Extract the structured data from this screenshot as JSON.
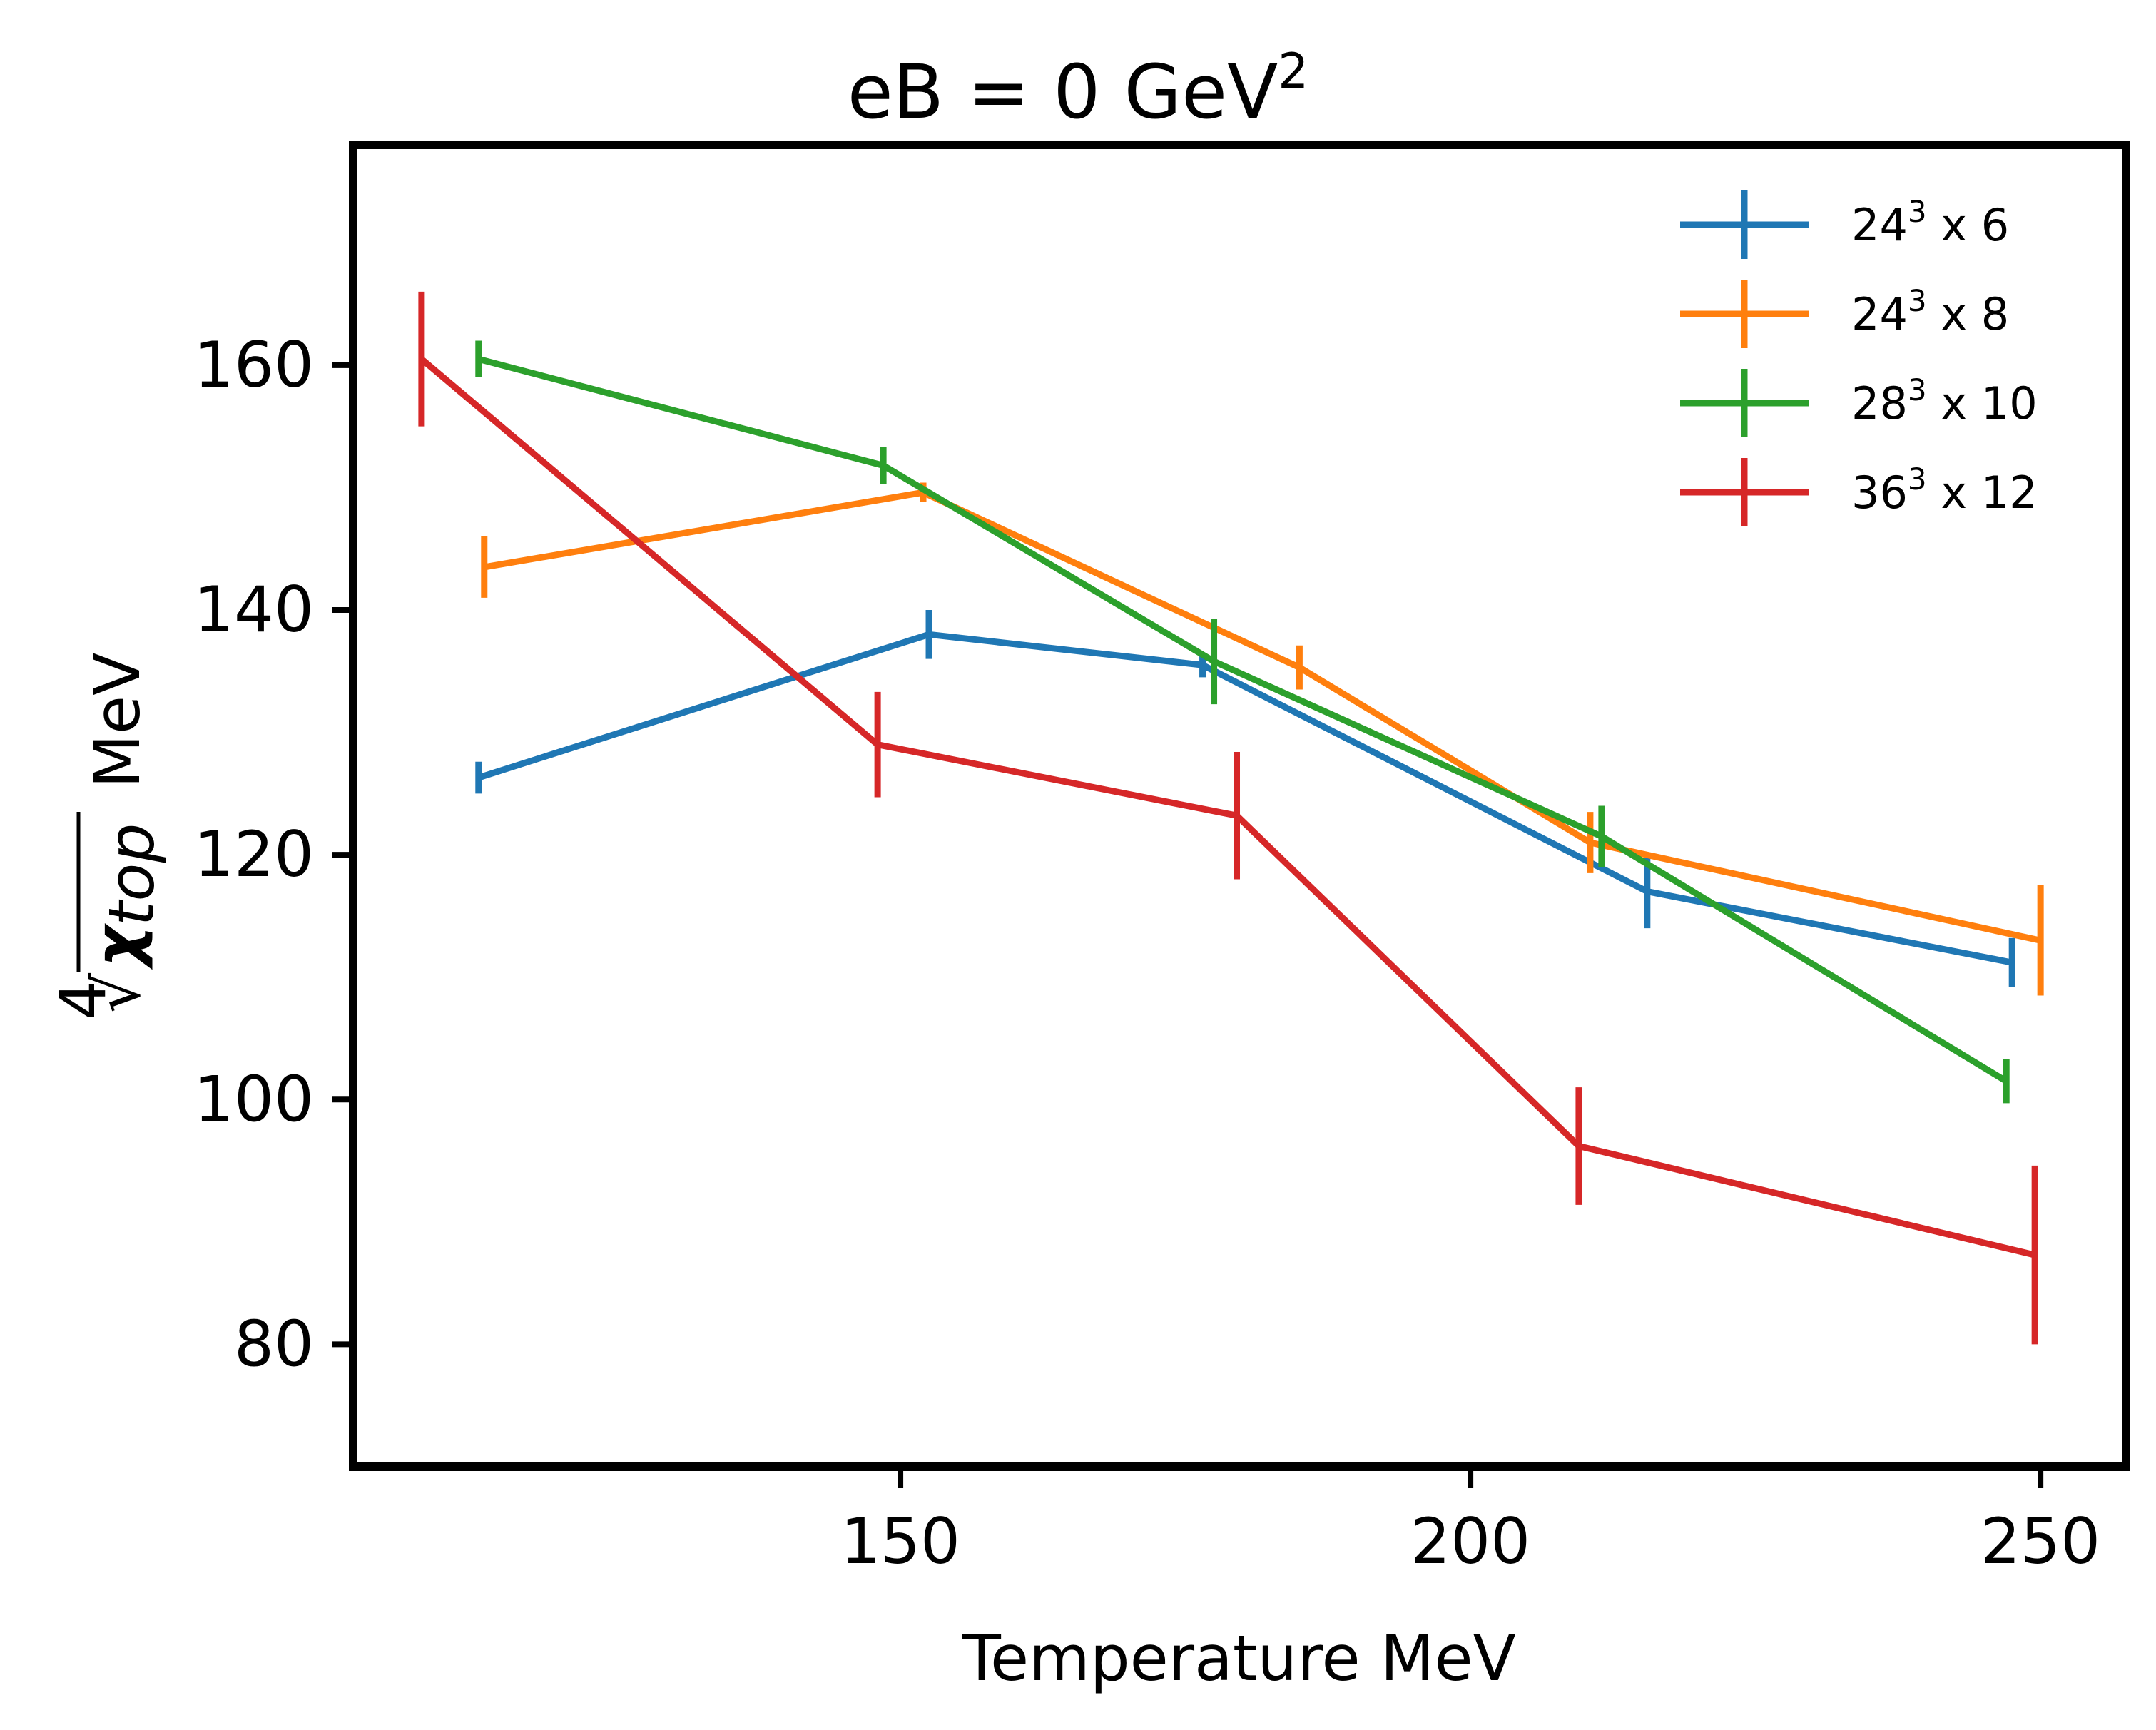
{
  "chart_data": {
    "type": "line",
    "title": "eB  = 0 GeV",
    "title_superscript": "2",
    "xlabel": "Temperature MeV",
    "ylabel": {
      "root_index": "4",
      "symbol": "χ",
      "subscript": "top",
      "unit": "MeV"
    },
    "xlim": [
      102,
      257.5
    ],
    "ylim": [
      70,
      178
    ],
    "xticks": [
      150,
      200,
      250
    ],
    "yticks": [
      80,
      100,
      120,
      140,
      160
    ],
    "grid": false,
    "legend_position": "top-right",
    "series": [
      {
        "name": "24",
        "name_sup": "3",
        "name_rest": " x 6",
        "color": "#1f77b4",
        "points": [
          {
            "x": 113,
            "y": 126.3,
            "err": 1.3
          },
          {
            "x": 152.5,
            "y": 138.0,
            "err": 2.0
          },
          {
            "x": 176.5,
            "y": 135.5,
            "err": 1.0
          },
          {
            "x": 215.5,
            "y": 117.0,
            "err": 3.0
          },
          {
            "x": 247.5,
            "y": 111.2,
            "err": 2.0
          }
        ]
      },
      {
        "name": "24",
        "name_sup": "3",
        "name_rest": " x 8",
        "color": "#ff7f0e",
        "points": [
          {
            "x": 113.5,
            "y": 143.5,
            "err": 2.5
          },
          {
            "x": 152.0,
            "y": 149.6,
            "err": 0.8
          },
          {
            "x": 185.0,
            "y": 135.3,
            "err": 1.8
          },
          {
            "x": 210.5,
            "y": 121.0,
            "err": 2.5
          },
          {
            "x": 250.0,
            "y": 113.0,
            "err": 4.5
          }
        ]
      },
      {
        "name": "28",
        "name_sup": "3",
        "name_rest": " x 10",
        "color": "#2ca02c",
        "points": [
          {
            "x": 113.0,
            "y": 160.5,
            "err": 1.5
          },
          {
            "x": 148.5,
            "y": 151.8,
            "err": 1.5
          },
          {
            "x": 177.5,
            "y": 135.8,
            "err": 3.5
          },
          {
            "x": 211.5,
            "y": 121.5,
            "err": 2.5
          },
          {
            "x": 247.0,
            "y": 101.5,
            "err": 1.8
          }
        ]
      },
      {
        "name": "36",
        "name_sup": "3",
        "name_rest": " x 12",
        "color": "#d62728",
        "points": [
          {
            "x": 108.0,
            "y": 160.5,
            "err": 5.5
          },
          {
            "x": 148.0,
            "y": 129.0,
            "err": 4.3
          },
          {
            "x": 179.5,
            "y": 123.2,
            "err": 5.2
          },
          {
            "x": 209.5,
            "y": 96.2,
            "err": 4.8
          },
          {
            "x": 249.5,
            "y": 87.3,
            "err": 7.3
          }
        ]
      }
    ]
  }
}
